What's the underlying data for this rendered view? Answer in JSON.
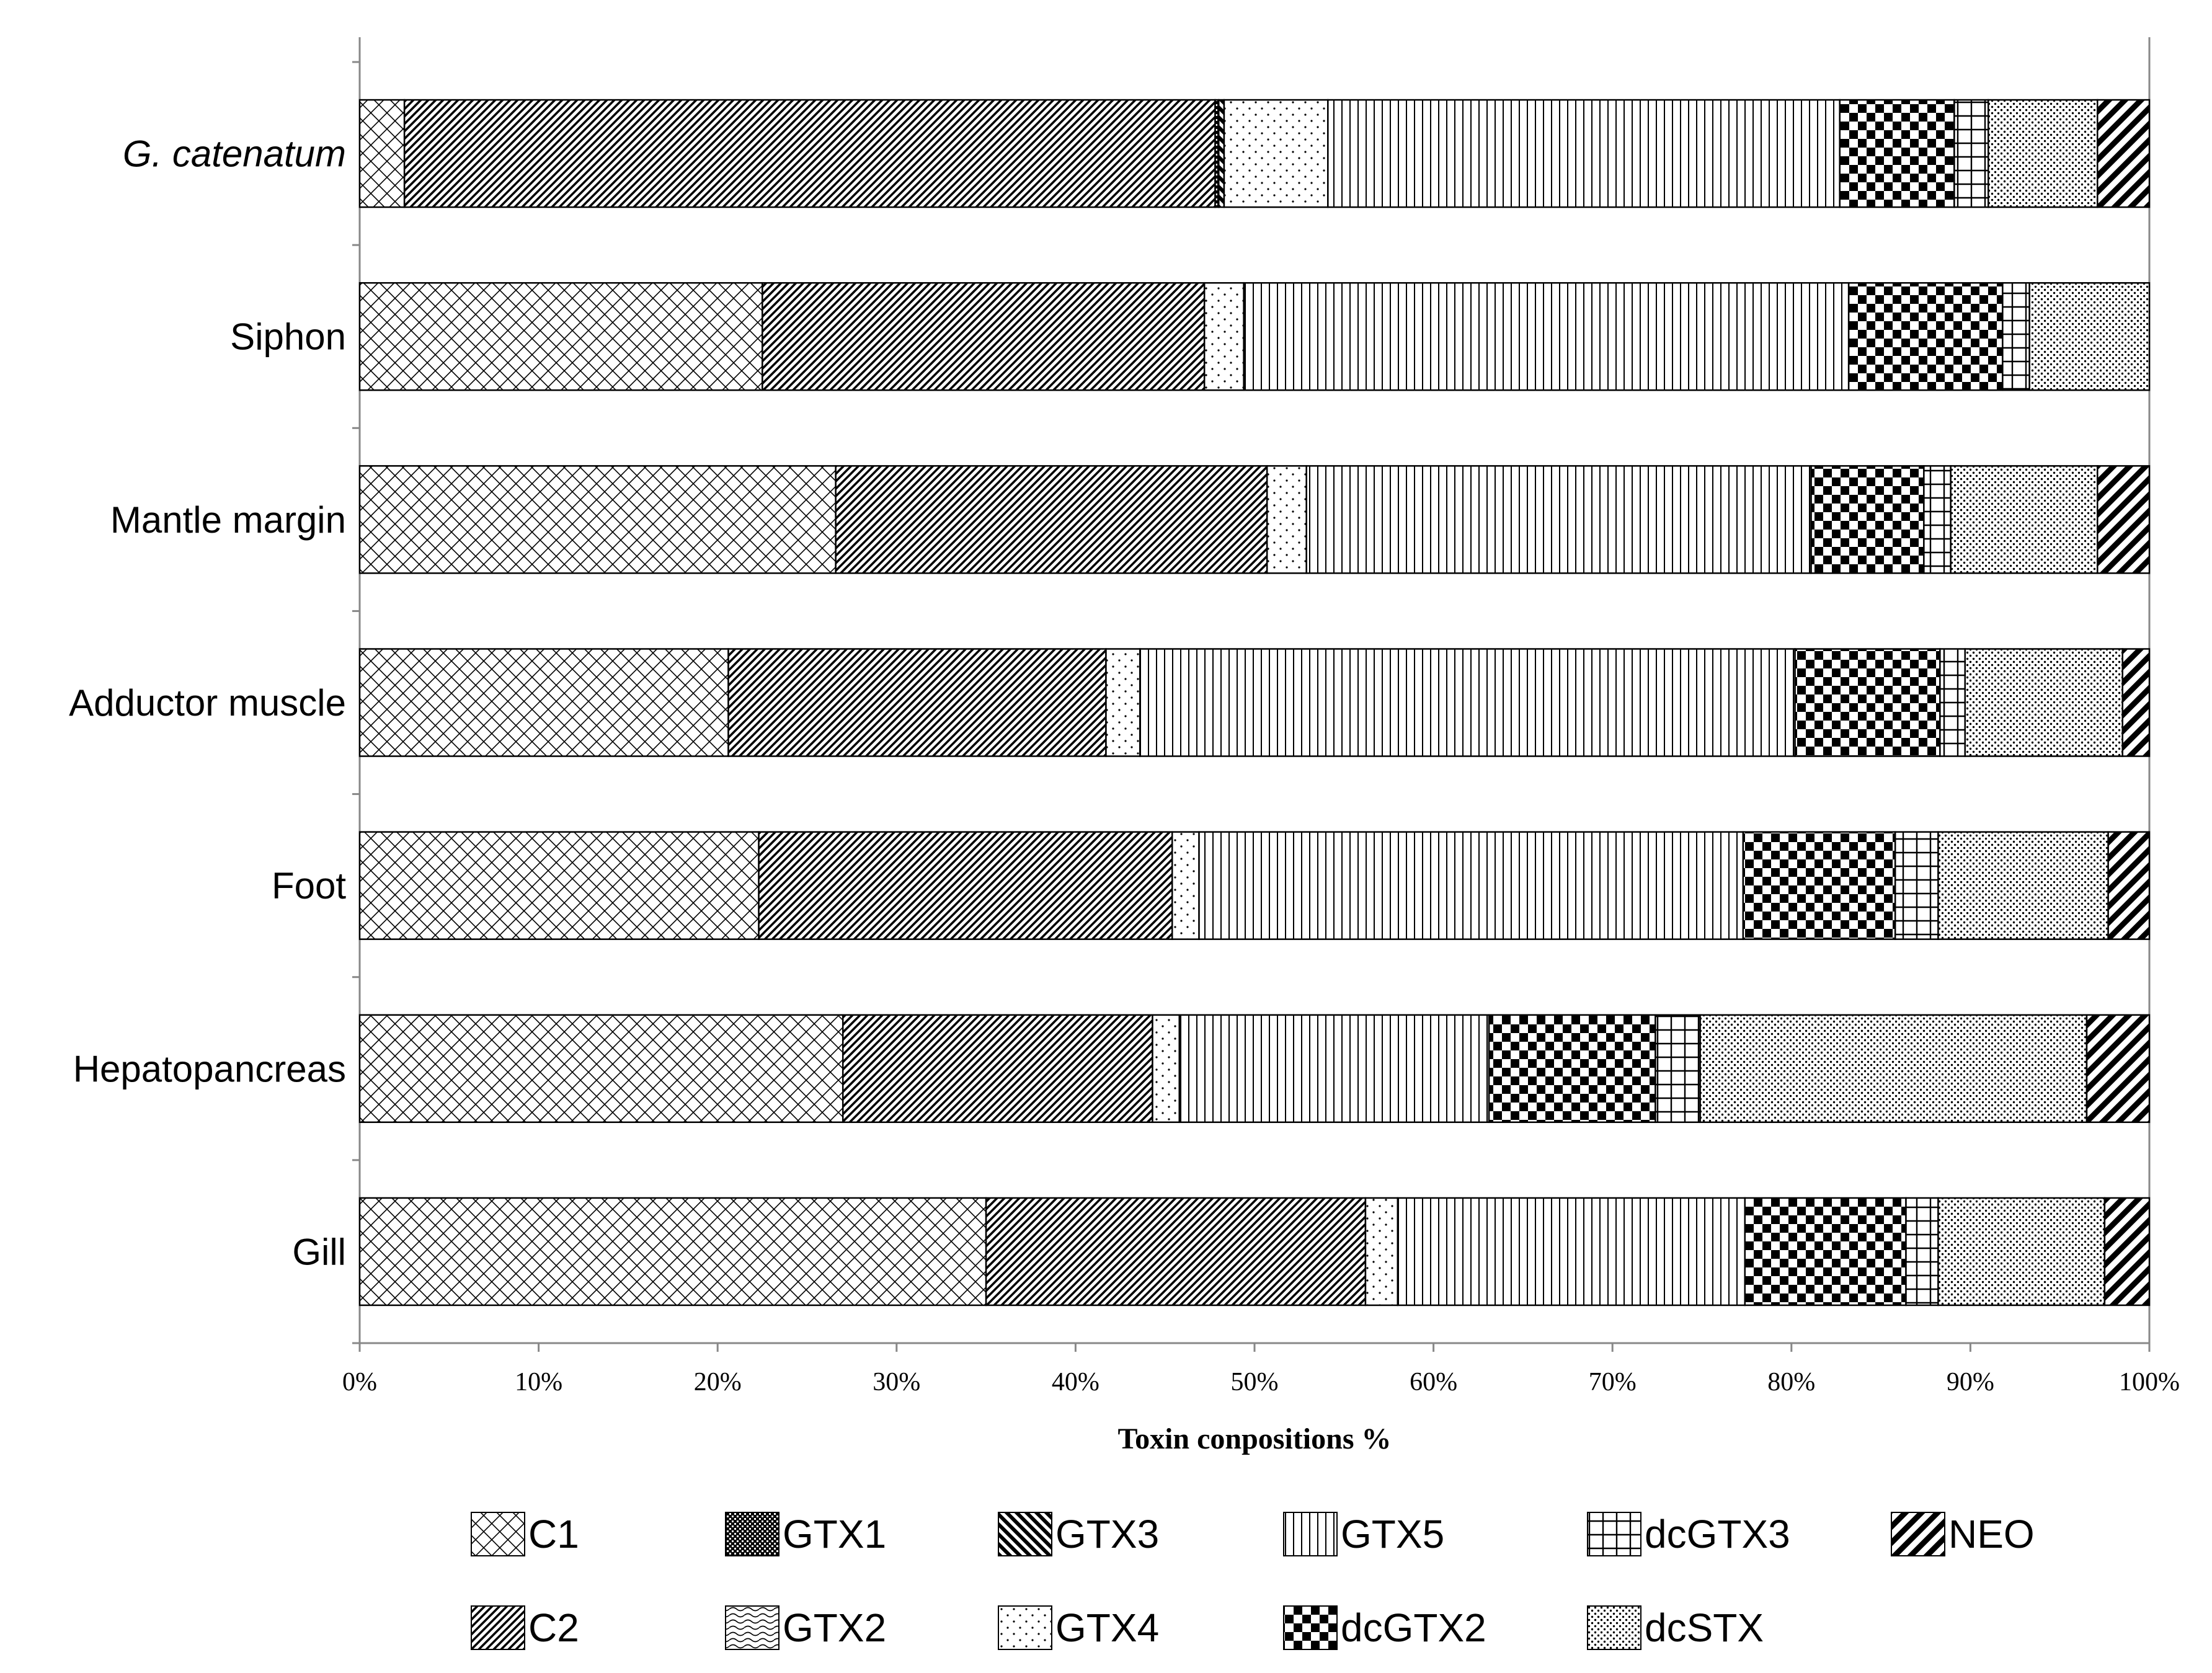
{
  "chart_data": {
    "type": "bar",
    "orientation": "horizontal",
    "stacked": true,
    "normalized": true,
    "xlabel": "Toxin conpositions %",
    "ylabel": "",
    "xlim": [
      0,
      100
    ],
    "x_ticks": [
      "0%",
      "10%",
      "20%",
      "30%",
      "40%",
      "50%",
      "60%",
      "70%",
      "80%",
      "90%",
      "100%"
    ],
    "grid": false,
    "legend_position": "bottom",
    "categories": [
      "G. catenatum",
      "Siphon",
      "Mantle margin",
      "Adductor muscle",
      "Foot",
      "Hepatopancreas",
      "Gill"
    ],
    "series": [
      {
        "name": "C1",
        "pattern": "crosshatch",
        "values": [
          2.5,
          22.5,
          26.6,
          20.6,
          22.3,
          27.0,
          35.0
        ]
      },
      {
        "name": "C2",
        "pattern": "diag-fwd",
        "values": [
          45.3,
          24.7,
          24.1,
          21.1,
          23.1,
          17.3,
          21.2
        ]
      },
      {
        "name": "GTX1",
        "pattern": "dense-check",
        "values": [
          0.2,
          0,
          0,
          0,
          0,
          0,
          0
        ]
      },
      {
        "name": "GTX2",
        "pattern": "wave",
        "values": [
          0,
          0,
          0,
          0,
          0,
          0,
          0
        ]
      },
      {
        "name": "GTX3",
        "pattern": "diag-back",
        "values": [
          0.3,
          0,
          0,
          0,
          0,
          0,
          0
        ]
      },
      {
        "name": "GTX4",
        "pattern": "sparse-dots",
        "values": [
          5.8,
          2.2,
          2.2,
          1.9,
          1.5,
          1.5,
          1.8
        ]
      },
      {
        "name": "GTX5",
        "pattern": "vertical",
        "values": [
          28.6,
          33.8,
          28.2,
          36.6,
          30.4,
          17.3,
          19.4
        ]
      },
      {
        "name": "dcGTX2",
        "pattern": "checker",
        "values": [
          6.4,
          8.6,
          6.3,
          8.1,
          8.5,
          9.3,
          9.0
        ]
      },
      {
        "name": "dcGTX3",
        "pattern": "grid",
        "values": [
          1.9,
          1.5,
          1.5,
          1.4,
          2.4,
          2.5,
          1.8
        ]
      },
      {
        "name": "dcSTX",
        "pattern": "dense-dots",
        "values": [
          6.1,
          6.7,
          8.2,
          8.8,
          9.5,
          21.6,
          9.3
        ]
      },
      {
        "name": "NEO",
        "pattern": "bold-diag",
        "values": [
          2.9,
          0,
          2.9,
          1.5,
          2.3,
          3.5,
          2.5
        ]
      }
    ],
    "legend_rows": [
      [
        "C1",
        "GTX1",
        "GTX3",
        "GTX5",
        "dcGTX3",
        "NEO"
      ],
      [
        "C2",
        "GTX2",
        "GTX4",
        "dcGTX2",
        "dcSTX"
      ]
    ]
  }
}
